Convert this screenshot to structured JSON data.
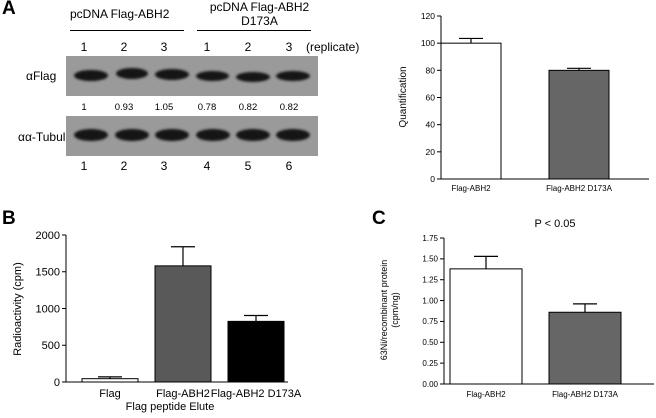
{
  "panels": {
    "a": "A",
    "b": "B",
    "c": "C"
  },
  "blot": {
    "group1_label": "pcDNA Flag-ABH2",
    "group2_label_line1": "pcDNA Flag-ABH2",
    "group2_label_line2": "D173A",
    "replicate_numbers": [
      "1",
      "2",
      "3",
      "1",
      "2",
      "3"
    ],
    "replicate_label": "(replicate)",
    "row1_label": "αFlag",
    "row2_label": "αα-Tubulin",
    "ratios": [
      "1",
      "0.93",
      "1.05",
      "0.78",
      "0.82",
      "0.82"
    ],
    "lane_numbers": [
      "1",
      "2",
      "3",
      "4",
      "5",
      "6"
    ]
  },
  "chart_data": [
    {
      "id": "A-right",
      "type": "bar",
      "categories": [
        "Flag-ABH2",
        "Flag-ABH2 D173A"
      ],
      "values": [
        100,
        80
      ],
      "errors": [
        3.5,
        1.5
      ],
      "colors": [
        "#ffffff",
        "#666666"
      ],
      "title": "",
      "xlabel": "",
      "ylabel": "Quantification",
      "ylim": [
        0,
        120
      ],
      "yticks": [
        0,
        20,
        40,
        60,
        80,
        100,
        120
      ],
      "ytick_labels": [
        "0",
        "20",
        "40",
        "60",
        "80",
        "100",
        "120"
      ]
    },
    {
      "id": "B",
      "type": "bar",
      "categories": [
        "Flag",
        "Flag-ABH2",
        "Flag-ABH2 D173A"
      ],
      "values": [
        45,
        1580,
        825
      ],
      "errors": [
        25,
        260,
        80
      ],
      "colors": [
        "#ffffff",
        "#595959",
        "#000000"
      ],
      "title": "",
      "xlabel": "Flag peptide Elute",
      "ylabel": "Radioactivity (cpm)",
      "ylim": [
        0,
        2000
      ],
      "yticks": [
        0,
        500,
        1000,
        1500,
        2000
      ],
      "ytick_labels": [
        "0",
        "500",
        "1000",
        "1500",
        "2000"
      ]
    },
    {
      "id": "C",
      "type": "bar",
      "categories": [
        "Flag-ABH2",
        "Flag-ABH2 D173A"
      ],
      "values": [
        1.38,
        0.86
      ],
      "errors": [
        0.15,
        0.1
      ],
      "colors": [
        "#ffffff",
        "#666666"
      ],
      "title": "",
      "annotation": "P < 0.05",
      "xlabel": "",
      "ylabel_line1": "63Ni/recombinant protein",
      "ylabel_line2": "(cpm/ng)",
      "ylim": [
        0,
        1.75
      ],
      "yticks": [
        0,
        0.25,
        0.5,
        0.75,
        1.0,
        1.25,
        1.5,
        1.75
      ],
      "ytick_labels": [
        "0.00",
        "0.25",
        "0.50",
        "0.75",
        "1.00",
        "1.25",
        "1.50",
        "1.75"
      ]
    }
  ]
}
